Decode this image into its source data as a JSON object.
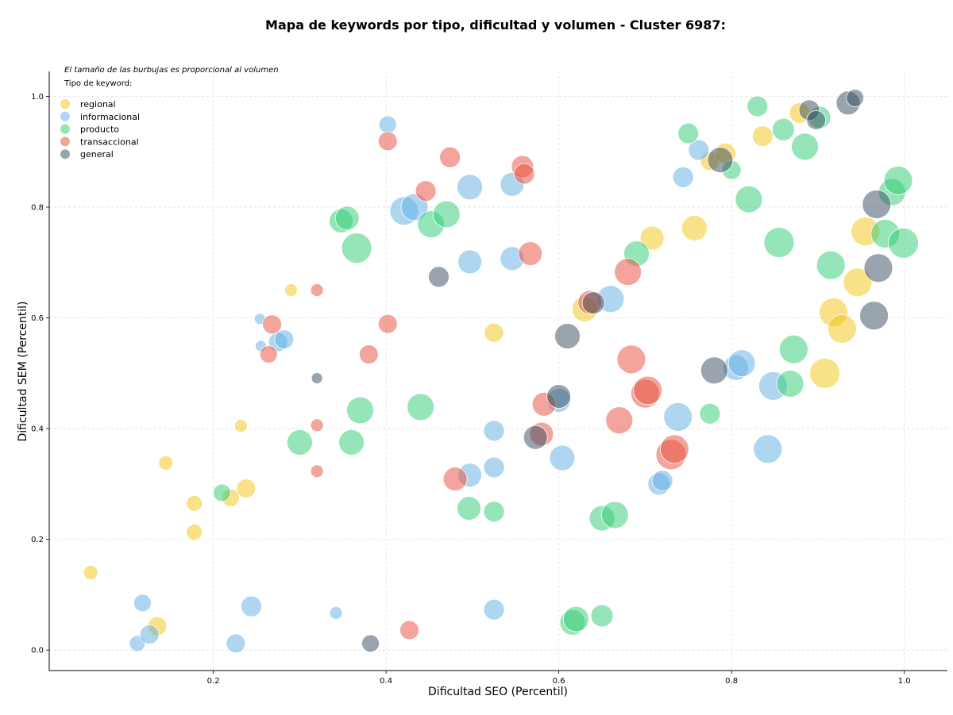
{
  "chart_data": {
    "type": "scatter",
    "title": "Mapa de keywords por tipo, dificultad y volumen - Cluster 6987:",
    "xlabel": "Dificultad SEO (Percentil)",
    "ylabel": "Dificultad SEM (Percentil)",
    "xlim": [
      0.01,
      1.05
    ],
    "ylim": [
      -0.037,
      1.045
    ],
    "xticks": [
      "0.2",
      "0.4",
      "0.6",
      "0.8",
      "1.0"
    ],
    "xtick_values": [
      0.2,
      0.4,
      0.6,
      0.8,
      1.0
    ],
    "yticks": [
      "0.0",
      "0.2",
      "0.4",
      "0.6",
      "0.8",
      "1.0"
    ],
    "ytick_values": [
      0.0,
      0.2,
      0.4,
      0.6,
      0.8,
      1.0
    ],
    "grid": true,
    "note": "El tamaño de las burbujas es proporcional al volumen",
    "legend_title": "Tipo de keyword:",
    "legend_position": "top-left",
    "series": [
      {
        "name": "regional",
        "color": "#f1c40f",
        "points": [
          [
            0.058,
            0.14,
            9
          ],
          [
            0.135,
            0.043,
            12
          ],
          [
            0.145,
            0.338,
            9
          ],
          [
            0.178,
            0.265,
            10
          ],
          [
            0.178,
            0.213,
            10
          ],
          [
            0.22,
            0.275,
            11
          ],
          [
            0.232,
            0.405,
            8
          ],
          [
            0.238,
            0.292,
            12
          ],
          [
            0.29,
            0.65,
            8
          ],
          [
            0.525,
            0.573,
            12
          ],
          [
            0.63,
            0.616,
            16
          ],
          [
            0.708,
            0.744,
            15
          ],
          [
            0.757,
            0.762,
            16
          ],
          [
            0.775,
            0.883,
            12
          ],
          [
            0.793,
            0.897,
            13
          ],
          [
            0.836,
            0.928,
            13
          ],
          [
            0.879,
            0.97,
            13
          ],
          [
            0.908,
            0.5,
            19
          ],
          [
            0.918,
            0.61,
            18
          ],
          [
            0.928,
            0.58,
            18
          ],
          [
            0.946,
            0.664,
            18
          ],
          [
            0.955,
            0.756,
            18
          ]
        ]
      },
      {
        "name": "informacional",
        "color": "#5dade2",
        "points": [
          [
            0.112,
            0.012,
            10
          ],
          [
            0.118,
            0.085,
            11
          ],
          [
            0.126,
            0.028,
            12
          ],
          [
            0.226,
            0.012,
            12
          ],
          [
            0.244,
            0.079,
            13
          ],
          [
            0.254,
            0.598,
            7
          ],
          [
            0.255,
            0.549,
            7
          ],
          [
            0.275,
            0.556,
            12
          ],
          [
            0.282,
            0.561,
            12
          ],
          [
            0.342,
            0.067,
            8
          ],
          [
            0.402,
            0.949,
            11
          ],
          [
            0.421,
            0.793,
            18
          ],
          [
            0.433,
            0.8,
            17
          ],
          [
            0.497,
            0.316,
            15
          ],
          [
            0.497,
            0.701,
            15
          ],
          [
            0.497,
            0.836,
            16
          ],
          [
            0.525,
            0.396,
            13
          ],
          [
            0.525,
            0.33,
            13
          ],
          [
            0.525,
            0.073,
            13
          ],
          [
            0.546,
            0.841,
            15
          ],
          [
            0.546,
            0.707,
            15
          ],
          [
            0.6,
            0.451,
            15
          ],
          [
            0.604,
            0.347,
            16
          ],
          [
            0.66,
            0.634,
            17
          ],
          [
            0.716,
            0.3,
            14
          ],
          [
            0.72,
            0.306,
            13
          ],
          [
            0.738,
            0.421,
            18
          ],
          [
            0.744,
            0.854,
            13
          ],
          [
            0.762,
            0.903,
            13
          ],
          [
            0.805,
            0.51,
            16
          ],
          [
            0.812,
            0.518,
            17
          ],
          [
            0.842,
            0.363,
            18
          ],
          [
            0.848,
            0.477,
            18
          ]
        ]
      },
      {
        "name": "producto",
        "color": "#2ecc71",
        "points": [
          [
            0.21,
            0.284,
            11
          ],
          [
            0.3,
            0.375,
            16
          ],
          [
            0.348,
            0.775,
            15
          ],
          [
            0.355,
            0.78,
            15
          ],
          [
            0.366,
            0.726,
            19
          ],
          [
            0.36,
            0.375,
            16
          ],
          [
            0.37,
            0.433,
            17
          ],
          [
            0.44,
            0.439,
            17
          ],
          [
            0.452,
            0.769,
            17
          ],
          [
            0.47,
            0.787,
            17
          ],
          [
            0.496,
            0.256,
            15
          ],
          [
            0.525,
            0.25,
            13
          ],
          [
            0.616,
            0.05,
            16
          ],
          [
            0.62,
            0.056,
            16
          ],
          [
            0.65,
            0.238,
            16
          ],
          [
            0.65,
            0.062,
            14
          ],
          [
            0.665,
            0.244,
            17
          ],
          [
            0.69,
            0.716,
            16
          ],
          [
            0.75,
            0.933,
            13
          ],
          [
            0.775,
            0.427,
            13
          ],
          [
            0.8,
            0.867,
            12
          ],
          [
            0.82,
            0.814,
            17
          ],
          [
            0.83,
            0.982,
            13
          ],
          [
            0.855,
            0.736,
            19
          ],
          [
            0.86,
            0.94,
            14
          ],
          [
            0.868,
            0.481,
            17
          ],
          [
            0.872,
            0.543,
            18
          ],
          [
            0.885,
            0.909,
            17
          ],
          [
            0.902,
            0.962,
            14
          ],
          [
            0.915,
            0.695,
            18
          ],
          [
            0.978,
            0.752,
            18
          ],
          [
            0.986,
            0.827,
            17
          ],
          [
            0.993,
            0.848,
            18
          ],
          [
            0.999,
            0.735,
            19
          ]
        ]
      },
      {
        "name": "transaccional",
        "color": "#e74c3c",
        "points": [
          [
            0.264,
            0.534,
            11
          ],
          [
            0.268,
            0.588,
            12
          ],
          [
            0.32,
            0.65,
            8
          ],
          [
            0.32,
            0.406,
            8
          ],
          [
            0.32,
            0.323,
            8
          ],
          [
            0.38,
            0.534,
            12
          ],
          [
            0.402,
            0.589,
            12
          ],
          [
            0.402,
            0.919,
            12
          ],
          [
            0.427,
            0.036,
            12
          ],
          [
            0.446,
            0.829,
            13
          ],
          [
            0.474,
            0.89,
            13
          ],
          [
            0.48,
            0.309,
            15
          ],
          [
            0.558,
            0.873,
            14
          ],
          [
            0.56,
            0.86,
            13
          ],
          [
            0.567,
            0.716,
            15
          ],
          [
            0.58,
            0.39,
            15
          ],
          [
            0.583,
            0.444,
            15
          ],
          [
            0.636,
            0.628,
            15
          ],
          [
            0.67,
            0.415,
            17
          ],
          [
            0.68,
            0.683,
            17
          ],
          [
            0.684,
            0.525,
            18
          ],
          [
            0.7,
            0.463,
            18
          ],
          [
            0.703,
            0.469,
            18
          ],
          [
            0.73,
            0.353,
            19
          ],
          [
            0.734,
            0.363,
            18
          ]
        ]
      },
      {
        "name": "general",
        "color": "#34495e",
        "points": [
          [
            0.382,
            0.012,
            11
          ],
          [
            0.32,
            0.491,
            7
          ],
          [
            0.461,
            0.674,
            13
          ],
          [
            0.573,
            0.384,
            15
          ],
          [
            0.6,
            0.458,
            15
          ],
          [
            0.61,
            0.567,
            16
          ],
          [
            0.64,
            0.627,
            14
          ],
          [
            0.78,
            0.505,
            17
          ],
          [
            0.787,
            0.885,
            16
          ],
          [
            0.89,
            0.975,
            13
          ],
          [
            0.898,
            0.957,
            12
          ],
          [
            0.935,
            0.988,
            15
          ],
          [
            0.943,
            0.997,
            11
          ],
          [
            0.965,
            0.604,
            18
          ],
          [
            0.968,
            0.805,
            18
          ],
          [
            0.97,
            0.69,
            18
          ]
        ]
      }
    ]
  }
}
